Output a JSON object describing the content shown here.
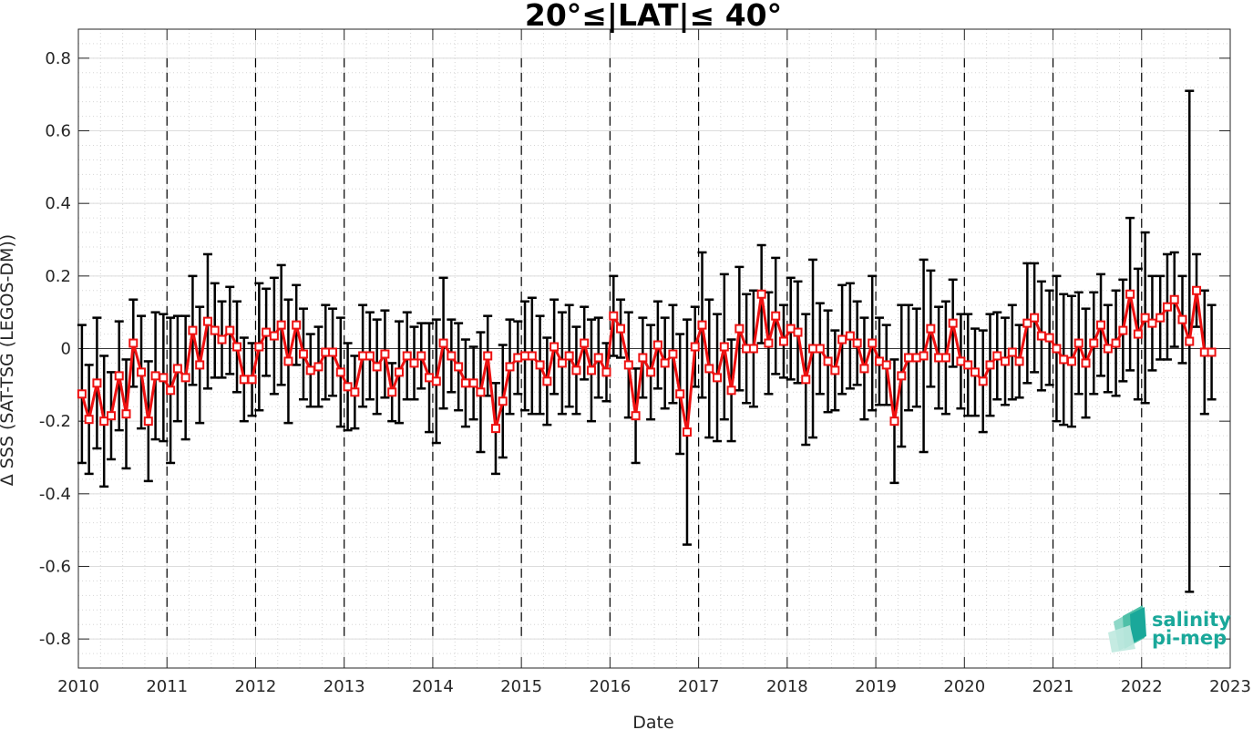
{
  "chart_data": {
    "type": "line",
    "title": "20°≤|LAT|≤ 40°",
    "xlabel": "Date",
    "ylabel": "Δ SSS (SAT-TSG (LEGOS-DM))",
    "xlim": [
      2010,
      2023
    ],
    "ylim": [
      -0.88,
      0.88
    ],
    "xticks": [
      "2010",
      "2011",
      "2012",
      "2013",
      "2014",
      "2015",
      "2016",
      "2017",
      "2018",
      "2019",
      "2020",
      "2021",
      "2022",
      "2023"
    ],
    "yticks": [
      "-0.8",
      "-0.6",
      "-0.4",
      "-0.2",
      "0",
      "0.2",
      "0.4",
      "0.6",
      "0.8"
    ],
    "year_markers": [
      "2011",
      "2012",
      "2013",
      "2014",
      "2015",
      "2016",
      "2017",
      "2018",
      "2019",
      "2020",
      "2021",
      "2022"
    ],
    "grid": true,
    "colors": {
      "series": "#ee1111",
      "errorbar": "#000000",
      "year_marker": "#000000",
      "grid": "#d6d6d6",
      "logo": "#1aa89a"
    },
    "series": [
      {
        "x": [
          2010.04,
          2010.12,
          2010.21,
          2010.29,
          2010.37,
          2010.46,
          2010.54,
          2010.62,
          2010.71,
          2010.79,
          2010.87,
          2010.96,
          2011.04,
          2011.12,
          2011.21,
          2011.29,
          2011.37,
          2011.46,
          2011.54,
          2011.62,
          2011.71,
          2011.79,
          2011.87,
          2011.96,
          2012.04,
          2012.12,
          2012.21,
          2012.29,
          2012.37,
          2012.46,
          2012.54,
          2012.62,
          2012.71,
          2012.79,
          2012.87,
          2012.96,
          2013.04,
          2013.12,
          2013.21,
          2013.29,
          2013.37,
          2013.46,
          2013.54,
          2013.62,
          2013.71,
          2013.79,
          2013.87,
          2013.96,
          2014.04,
          2014.12,
          2014.21,
          2014.29,
          2014.37,
          2014.46,
          2014.54,
          2014.62,
          2014.71,
          2014.79,
          2014.87,
          2014.96,
          2015.04,
          2015.12,
          2015.21,
          2015.29,
          2015.37,
          2015.46,
          2015.54,
          2015.62,
          2015.71,
          2015.79,
          2015.87,
          2015.96,
          2016.04,
          2016.12,
          2016.21,
          2016.29,
          2016.37,
          2016.46,
          2016.54,
          2016.62,
          2016.71,
          2016.79,
          2016.87,
          2016.96,
          2017.04,
          2017.12,
          2017.21,
          2017.29,
          2017.37,
          2017.46,
          2017.54,
          2017.62,
          2017.71,
          2017.79,
          2017.87,
          2017.96,
          2018.04,
          2018.12,
          2018.21,
          2018.29,
          2018.37,
          2018.46,
          2018.54,
          2018.62,
          2018.71,
          2018.79,
          2018.87,
          2018.96,
          2019.04,
          2019.12,
          2019.21,
          2019.29,
          2019.37,
          2019.46,
          2019.54,
          2019.62,
          2019.71,
          2019.79,
          2019.87,
          2019.96,
          2020.04,
          2020.12,
          2020.21,
          2020.29,
          2020.37,
          2020.46,
          2020.54,
          2020.62,
          2020.71,
          2020.79,
          2020.87,
          2020.96,
          2021.04,
          2021.12,
          2021.21,
          2021.29,
          2021.37,
          2021.46,
          2021.54,
          2021.62,
          2021.71,
          2021.79,
          2021.87,
          2021.96,
          2022.04,
          2022.12,
          2022.21,
          2022.29,
          2022.37,
          2022.46,
          2022.54,
          2022.62,
          2022.71,
          2022.79
        ],
        "values": [
          -0.125,
          -0.195,
          -0.095,
          -0.2,
          -0.185,
          -0.075,
          -0.18,
          0.015,
          -0.065,
          -0.2,
          -0.075,
          -0.08,
          -0.115,
          -0.055,
          -0.08,
          0.05,
          -0.045,
          0.075,
          0.05,
          0.025,
          0.05,
          0.005,
          -0.085,
          -0.085,
          0.005,
          0.045,
          0.035,
          0.065,
          -0.035,
          0.065,
          -0.015,
          -0.06,
          -0.05,
          -0.01,
          -0.01,
          -0.065,
          -0.105,
          -0.12,
          -0.02,
          -0.02,
          -0.05,
          -0.015,
          -0.12,
          -0.065,
          -0.02,
          -0.04,
          -0.02,
          -0.08,
          -0.09,
          0.015,
          -0.02,
          -0.05,
          -0.095,
          -0.095,
          -0.12,
          -0.02,
          -0.22,
          -0.145,
          -0.05,
          -0.025,
          -0.02,
          -0.02,
          -0.045,
          -0.09,
          0.005,
          -0.04,
          -0.02,
          -0.06,
          0.015,
          -0.06,
          -0.025,
          -0.065,
          0.09,
          0.055,
          -0.045,
          -0.185,
          -0.025,
          -0.065,
          0.01,
          -0.04,
          -0.015,
          -0.125,
          -0.23,
          0.005,
          0.065,
          -0.055,
          -0.08,
          0.005,
          -0.115,
          0.055,
          0.0,
          0.0,
          0.15,
          0.015,
          0.09,
          0.02,
          0.055,
          0.045,
          -0.085,
          0.0,
          0.0,
          -0.035,
          -0.06,
          0.025,
          0.035,
          0.015,
          -0.055,
          0.015,
          -0.035,
          -0.045,
          -0.2,
          -0.075,
          -0.025,
          -0.025,
          -0.02,
          0.055,
          -0.025,
          -0.025,
          0.07,
          -0.035,
          -0.045,
          -0.065,
          -0.09,
          -0.045,
          -0.02,
          -0.035,
          -0.01,
          -0.035,
          0.07,
          0.085,
          0.035,
          0.03,
          0.0,
          -0.03,
          -0.035,
          0.015,
          -0.04,
          0.015,
          0.065,
          0.0,
          0.015,
          0.05,
          0.15,
          0.04,
          0.085,
          0.07,
          0.085,
          0.115,
          0.135,
          0.08,
          0.02,
          0.16,
          -0.01,
          -0.01
        ],
        "err": [
          0.19,
          0.15,
          0.18,
          0.18,
          0.12,
          0.15,
          0.15,
          0.12,
          0.155,
          0.165,
          0.175,
          0.175,
          0.2,
          0.145,
          0.17,
          0.15,
          0.16,
          0.185,
          0.13,
          0.105,
          0.12,
          0.125,
          0.115,
          0.1,
          0.175,
          0.12,
          0.16,
          0.165,
          0.17,
          0.11,
          0.125,
          0.1,
          0.11,
          0.13,
          0.12,
          0.15,
          0.12,
          0.1,
          0.14,
          0.12,
          0.13,
          0.12,
          0.08,
          0.14,
          0.12,
          0.1,
          0.09,
          0.15,
          0.17,
          0.18,
          0.1,
          0.12,
          0.12,
          0.1,
          0.165,
          0.11,
          0.125,
          0.155,
          0.13,
          0.1,
          0.15,
          0.16,
          0.135,
          0.12,
          0.13,
          0.14,
          0.14,
          0.12,
          0.1,
          0.14,
          0.11,
          0.08,
          0.11,
          0.08,
          0.145,
          0.13,
          0.11,
          0.13,
          0.12,
          0.125,
          0.135,
          0.165,
          0.31,
          0.11,
          0.2,
          0.19,
          0.175,
          0.2,
          0.14,
          0.17,
          0.15,
          0.16,
          0.135,
          0.14,
          0.16,
          0.1,
          0.14,
          0.14,
          0.18,
          0.245,
          0.125,
          0.14,
          0.11,
          0.15,
          0.145,
          0.115,
          0.14,
          0.185,
          0.12,
          0.11,
          0.17,
          0.195,
          0.145,
          0.135,
          0.265,
          0.16,
          0.14,
          0.155,
          0.12,
          0.13,
          0.14,
          0.12,
          0.14,
          0.14,
          0.12,
          0.12,
          0.13,
          0.1,
          0.165,
          0.15,
          0.15,
          0.13,
          0.2,
          0.18,
          0.18,
          0.14,
          0.15,
          0.14,
          0.14,
          0.12,
          0.145,
          0.14,
          0.21,
          0.18,
          0.235,
          0.13,
          0.115,
          0.145,
          0.13,
          0.12,
          0.69,
          0.1,
          0.17,
          0.13
        ]
      }
    ]
  },
  "logo": {
    "line1": "salinity",
    "line2": "pi-mep"
  }
}
